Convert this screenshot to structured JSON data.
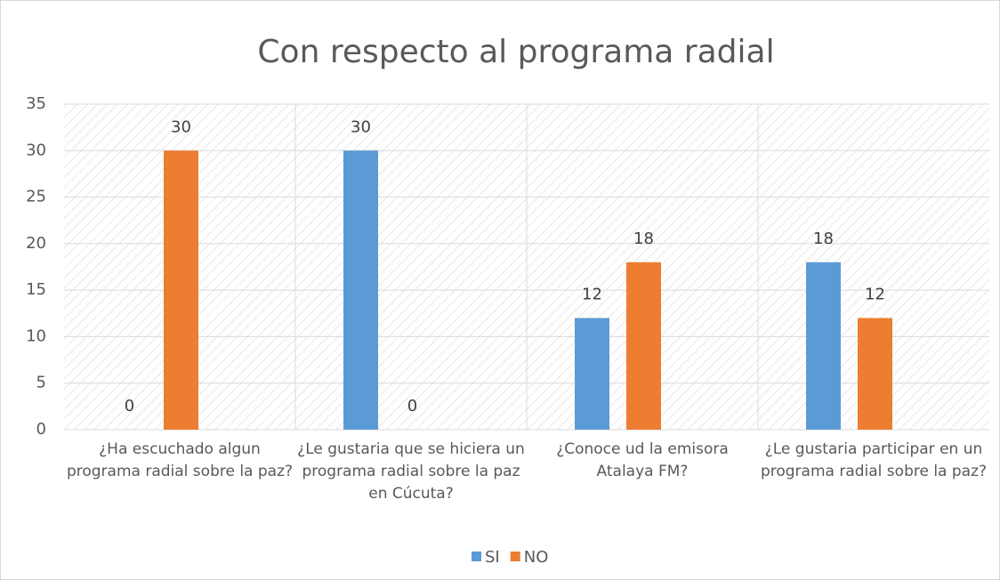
{
  "chart_data": {
    "type": "bar",
    "title": "Con respecto al programa radial",
    "categories": [
      "¿Ha escuchado algun programa radial sobre la paz?",
      "¿Le gustaria que se hiciera un programa radial sobre la paz en Cúcuta?",
      "¿Conoce ud la emisora Atalaya FM?",
      "¿Le gustaria participar en un programa radial sobre la paz?"
    ],
    "series": [
      {
        "name": "SI",
        "color": "#5b9bd5",
        "values": [
          0,
          30,
          12,
          18
        ]
      },
      {
        "name": "NO",
        "color": "#ed7d31",
        "values": [
          30,
          0,
          18,
          12
        ]
      }
    ],
    "ylim": [
      0,
      35
    ],
    "yticks": [
      0,
      5,
      10,
      15,
      20,
      25,
      30,
      35
    ],
    "grid": true,
    "legend": "bottom"
  }
}
